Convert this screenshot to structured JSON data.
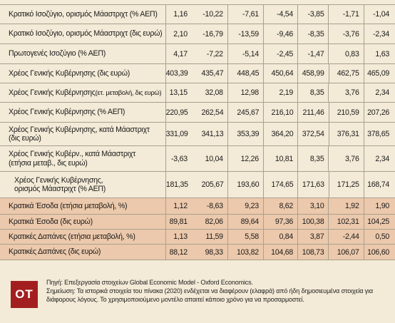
{
  "rows": [
    {
      "label": "Κρατικό Ισοζύγιο, ορισμός Μάαστριχτ (% ΑΕΠ)",
      "small": "",
      "values": [
        "1,16",
        "-10,22",
        "-7,61",
        "-4,54",
        "-3,85",
        "-1,71",
        "-1,04"
      ]
    },
    {
      "label": "Κρατικό Ισοζύγιο, ορισμός Μάαστριχτ (δις ευρώ)",
      "small": "",
      "values": [
        "2,10",
        "-16,79",
        "-13,59",
        "-9,46",
        "-8,35",
        "-3,76",
        "-2,34"
      ]
    },
    {
      "label": "Πρωτογενές Ισοζύγιο (% ΑΕΠ)",
      "small": "",
      "values": [
        "4,17",
        "-7,22",
        "-5,14",
        "-2,45",
        "-1,47",
        "0,83",
        "1,63"
      ]
    },
    {
      "label": "Χρέος Γενικής Κυβέρνησης (δις ευρώ)",
      "small": "",
      "values": [
        "403,39",
        "435,47",
        "448,45",
        "450,64",
        "458,99",
        "462,75",
        "465,09"
      ]
    },
    {
      "label": "Χρέος Γενικής Κυβέρνησης ",
      "small": "(ετ. μεταβολή, δις ευρώ)",
      "values": [
        "13,15",
        "32,08",
        "12,98",
        "2,19",
        "8,35",
        "3,76",
        "2,34"
      ]
    },
    {
      "label": "Χρέος Γενικής Κυβέρνησης (% ΑΕΠ)",
      "small": "",
      "values": [
        "220,95",
        "262,54",
        "245,67",
        "216,10",
        "211,46",
        "210,59",
        "207,26"
      ]
    },
    {
      "label": "Χρέος Γενικής Κυβέρνησης, κατά Μάαστριχτ\n(δις ευρώ)",
      "small": "",
      "values": [
        "331,09",
        "341,13",
        "353,39",
        "364,20",
        "372,54",
        "376,31",
        "378,65"
      ]
    },
    {
      "label": "Χρέος Γενικής Κυβέρν., κατά Μάαστριχτ\n(ετήσια μεταβ., δις ευρώ)",
      "small": "",
      "values": [
        "-3,63",
        "10,04",
        "12,26",
        "10,81",
        "8,35",
        "3,76",
        "2,34"
      ]
    },
    {
      "label": "Χρέος Γενικής Κυβέρνησης,\nορισμός Μάαστριχτ (% ΑΕΠ)",
      "small": "",
      "values": [
        "181,35",
        "205,67",
        "193,60",
        "174,65",
        "171,63",
        "171,25",
        "168,74"
      ]
    },
    {
      "label": "Κρατικά Έσοδα (ετήσια μεταβολή, %)",
      "small": "",
      "values": [
        "1,12",
        "-8,63",
        "9,23",
        "8,62",
        "3,10",
        "1,92",
        "1,90"
      ]
    },
    {
      "label": "Κρατικά Έσοδα (δις ευρώ)",
      "small": "",
      "values": [
        "89,81",
        "82,06",
        "89,64",
        "97,36",
        "100,38",
        "102,31",
        "104,25"
      ]
    },
    {
      "label": "Κρατικές Δαπάνες (ετήσια μεταβολή, %)",
      "small": "",
      "values": [
        "1,13",
        "11,59",
        "5,58",
        "0,84",
        "3,87",
        "-2,44",
        "0,50"
      ]
    },
    {
      "label": "Κρατικές Δαπάνες (δις ευρώ)",
      "small": "",
      "values": [
        "88,12",
        "98,33",
        "103,82",
        "104,68",
        "108,73",
        "106,07",
        "106,60"
      ]
    }
  ],
  "footer": {
    "logo": "OT",
    "source": "Πηγή: Επεξεργασία στοιχείων Global Economic Model - Oxford Economics.",
    "note": "Σημείωση: Τα ιστορικά στοιχεία του πίνακα (2020) ενδέχεται να διαφέρουν (ελαφρά) από ήδη δημοσιευμένα στοιχεία για διάφορους λόγους. Το χρησιμοποιούμενο μοντέλο απαιτεί κάποιο χρόνο για να προσαρμοστεί."
  },
  "colors": {
    "background": "#f3ead7",
    "highlight": "#ecc9ac",
    "logo": "#a31f1f"
  }
}
